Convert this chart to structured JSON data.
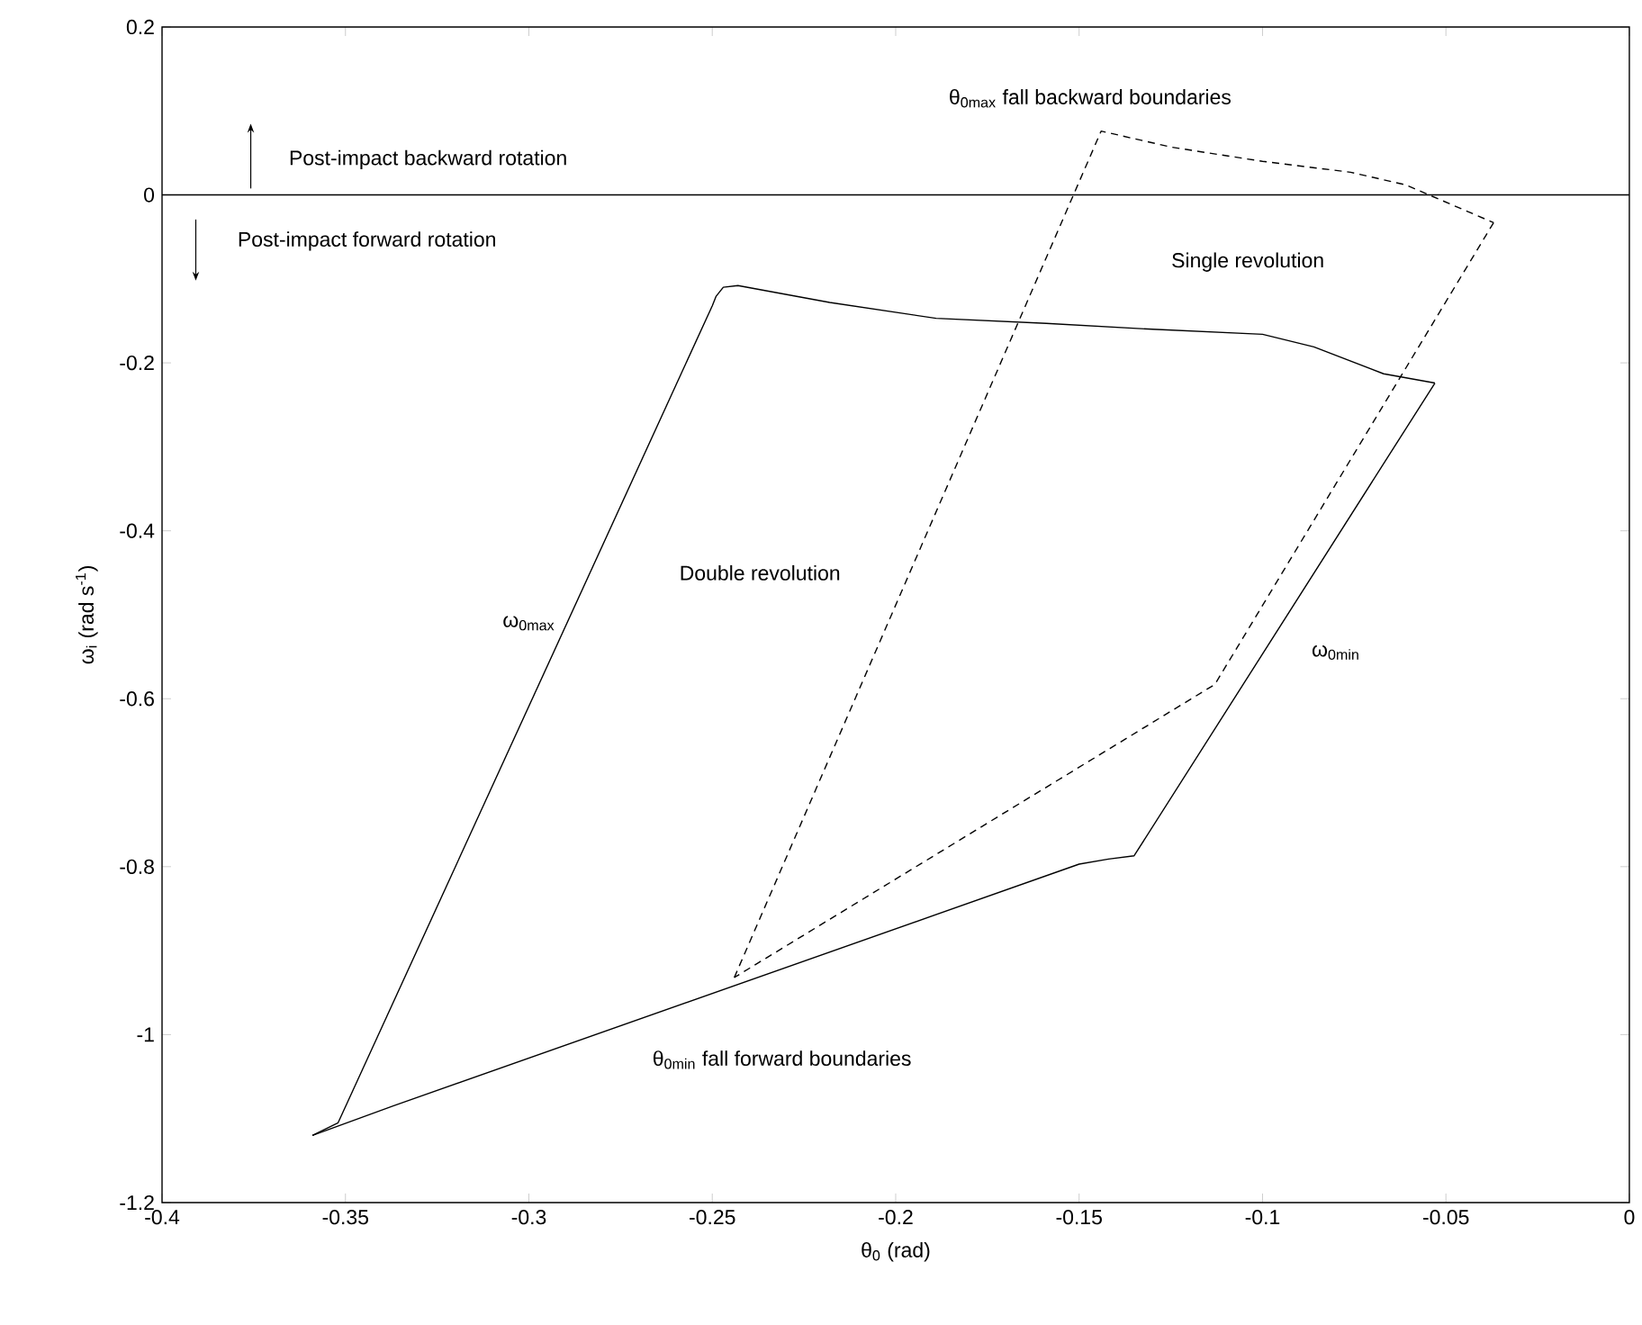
{
  "chart_data": {
    "type": "line",
    "xlabel": "θ$_{0}$ (rad)",
    "ylabel": "ω$_{i}$ (rad s$^{-1}$)",
    "series": [
      {
        "color": "#000000",
        "line_style": "solid",
        "x": [
          -0.359,
          -0.352,
          -0.25,
          -0.249,
          -0.247,
          -0.243,
          -0.218,
          -0.189,
          -0.159,
          -0.13,
          -0.1,
          -0.086,
          -0.067,
          -0.053
        ],
        "values": [
          -1.12,
          -1.105,
          -0.132,
          -0.121,
          -0.11,
          -0.108,
          -0.128,
          -0.147,
          -0.153,
          -0.16,
          -0.166,
          -0.181,
          -0.213,
          -0.224
        ]
      },
      {
        "color": "#000000",
        "line_style": "solid",
        "x": [
          -0.053,
          -0.135,
          -0.142,
          -0.15,
          -0.337,
          -0.359
        ],
        "values": [
          -0.224,
          -0.787,
          -0.791,
          -0.797,
          -1.085,
          -1.12
        ]
      },
      {
        "color": "#000000",
        "line_style": "dashed",
        "x": [
          -0.244,
          -0.144,
          -0.125,
          -0.1,
          -0.076,
          -0.061,
          -0.037
        ],
        "values": [
          -0.932,
          0.076,
          0.057,
          0.04,
          0.027,
          0.012,
          -0.033
        ]
      },
      {
        "color": "#000000",
        "line_style": "dashed",
        "x": [
          -0.037,
          -0.113,
          -0.244
        ],
        "values": [
          -0.033,
          -0.583,
          -0.932
        ]
      }
    ],
    "xlim": [
      -0.4,
      0
    ],
    "ylim": [
      -1.2,
      0.2
    ],
    "xticks": [
      -0.4,
      -0.35,
      -0.3,
      -0.25,
      -0.2,
      -0.15,
      -0.1,
      -0.05,
      0
    ],
    "yticks": [
      -1.2,
      -1,
      -0.8,
      -0.6,
      -0.4,
      -0.2,
      0,
      0.2
    ],
    "ref_lines": [
      {
        "axis": "y",
        "value": 0,
        "color": "#000000"
      }
    ],
    "annotations": [
      "Post-impact backward rotation",
      "Post-impact forward rotation",
      "θ$_{0max}$ fall backward boundaries",
      "Single revolution",
      "Double revolution",
      "ω$_{0max}$",
      "ω$_{0min}$",
      "θ$_{0min}$ fall forward boundaries"
    ],
    "grid": false,
    "marker": "none"
  }
}
